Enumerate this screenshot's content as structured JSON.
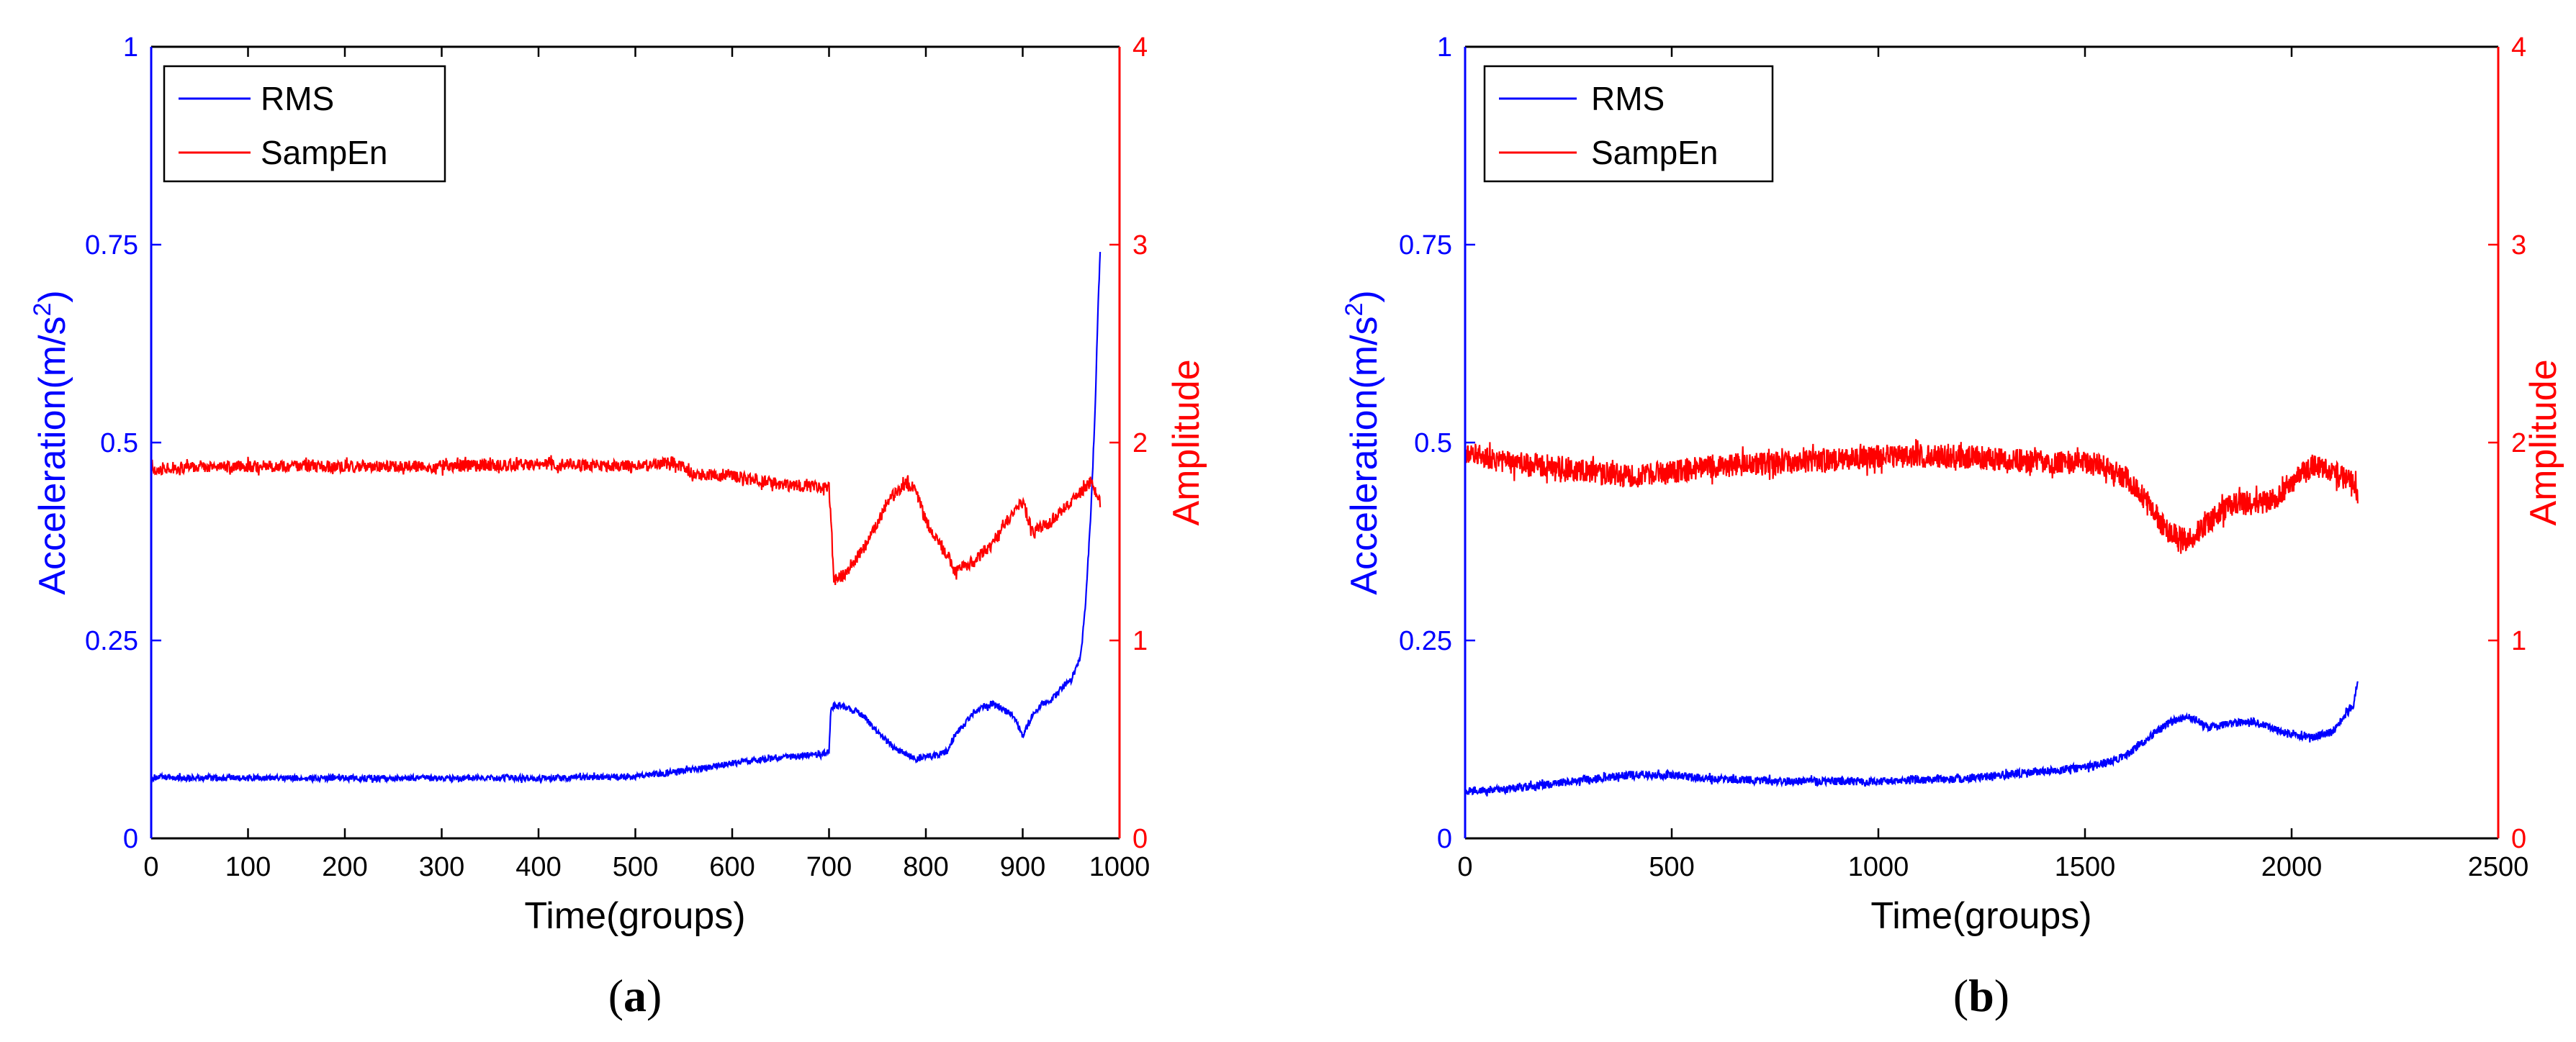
{
  "colors": {
    "left_axis": "#0000ff",
    "right_axis": "#ff0000",
    "frame": "#000000"
  },
  "chart_data": [
    {
      "panel_id": "a",
      "caption": {
        "open": "(",
        "letter": "a",
        "close": ")"
      },
      "type": "line",
      "title": "",
      "xlabel": "Time(groups)",
      "ylabel_left": "Acceleration(m/s",
      "ylabel_left_sup": "2",
      "ylabel_left_close": ")",
      "ylabel_right": "Amplitude",
      "xlim": [
        0,
        1000
      ],
      "ylim_left": [
        0,
        1
      ],
      "ylim_right": [
        0,
        4
      ],
      "xticks": [
        "0",
        "100",
        "200",
        "300",
        "400",
        "500",
        "600",
        "700",
        "800",
        "900",
        "1000"
      ],
      "xtick_values": [
        0,
        100,
        200,
        300,
        400,
        500,
        600,
        700,
        800,
        900,
        1000
      ],
      "yticks_left": [
        "0",
        "0.25",
        "0.5",
        "0.75",
        "1"
      ],
      "ytick_left_values": [
        0,
        0.25,
        0.5,
        0.75,
        1
      ],
      "yticks_right": [
        "0",
        "1",
        "2",
        "3",
        "4"
      ],
      "ytick_right_values": [
        0,
        1,
        2,
        3,
        4
      ],
      "legend": [
        "RMS",
        "SampEn"
      ],
      "legend_position": "top-left",
      "series": [
        {
          "name": "RMS",
          "axis": "left",
          "color": "#0000ff",
          "noise": 0.004,
          "x": [
            0,
            100,
            200,
            300,
            400,
            500,
            550,
            600,
            650,
            700,
            702,
            710,
            730,
            750,
            770,
            790,
            810,
            822,
            830,
            850,
            870,
            890,
            900,
            910,
            920,
            930,
            940,
            950,
            960,
            965,
            970,
            975,
            978,
            980
          ],
          "values": [
            0.077,
            0.076,
            0.076,
            0.076,
            0.076,
            0.078,
            0.085,
            0.095,
            0.102,
            0.108,
            0.165,
            0.168,
            0.16,
            0.135,
            0.112,
            0.1,
            0.105,
            0.11,
            0.13,
            0.16,
            0.17,
            0.155,
            0.13,
            0.155,
            0.17,
            0.175,
            0.19,
            0.2,
            0.23,
            0.3,
            0.4,
            0.55,
            0.68,
            0.74
          ]
        },
        {
          "name": "SampEn",
          "axis": "right",
          "color": "#ff0000",
          "noise": 0.03,
          "x": [
            0,
            100,
            200,
            300,
            400,
            500,
            540,
            560,
            600,
            650,
            700,
            702,
            705,
            720,
            740,
            760,
            780,
            790,
            800,
            820,
            830,
            850,
            870,
            890,
            900,
            910,
            930,
            950,
            960,
            970,
            980
          ],
          "values": [
            1.87,
            1.88,
            1.88,
            1.88,
            1.89,
            1.88,
            1.9,
            1.84,
            1.83,
            1.79,
            1.77,
            1.6,
            1.3,
            1.35,
            1.5,
            1.7,
            1.8,
            1.75,
            1.6,
            1.45,
            1.35,
            1.4,
            1.5,
            1.65,
            1.7,
            1.55,
            1.6,
            1.7,
            1.75,
            1.8,
            1.7
          ]
        }
      ]
    },
    {
      "panel_id": "b",
      "caption": {
        "open": "(",
        "letter": "b",
        "close": ")"
      },
      "type": "line",
      "title": "",
      "xlabel": "Time(groups)",
      "ylabel_left": "Acceleration(m/s",
      "ylabel_left_sup": "2",
      "ylabel_left_close": ")",
      "ylabel_right": "Amplitude",
      "xlim": [
        0,
        2500
      ],
      "ylim_left": [
        0,
        1
      ],
      "ylim_right": [
        0,
        4
      ],
      "xticks": [
        "0",
        "500",
        "1000",
        "1500",
        "2000",
        "2500"
      ],
      "xtick_values": [
        0,
        500,
        1000,
        1500,
        2000,
        2500
      ],
      "yticks_left": [
        "0",
        "0.25",
        "0.5",
        "0.75",
        "1"
      ],
      "ytick_left_values": [
        0,
        0.25,
        0.5,
        0.75,
        1
      ],
      "yticks_right": [
        "0",
        "1",
        "2",
        "3",
        "4"
      ],
      "ytick_right_values": [
        0,
        1,
        2,
        3,
        4
      ],
      "legend": [
        "RMS",
        "SampEn"
      ],
      "legend_position": "top-left",
      "series": [
        {
          "name": "RMS",
          "axis": "left",
          "color": "#0000ff",
          "noise": 0.005,
          "x": [
            0,
            100,
            200,
            300,
            400,
            500,
            600,
            800,
            1000,
            1200,
            1400,
            1500,
            1550,
            1600,
            1650,
            1700,
            1750,
            1800,
            1850,
            1900,
            1950,
            2000,
            2050,
            2100,
            2150,
            2160
          ],
          "values": [
            0.06,
            0.062,
            0.068,
            0.075,
            0.08,
            0.08,
            0.075,
            0.072,
            0.072,
            0.075,
            0.085,
            0.09,
            0.095,
            0.105,
            0.125,
            0.145,
            0.155,
            0.14,
            0.145,
            0.148,
            0.14,
            0.13,
            0.128,
            0.135,
            0.17,
            0.2
          ]
        },
        {
          "name": "SampEn",
          "axis": "right",
          "color": "#ff0000",
          "noise": 0.06,
          "x": [
            0,
            100,
            200,
            300,
            400,
            500,
            600,
            800,
            1000,
            1200,
            1400,
            1500,
            1550,
            1600,
            1650,
            1700,
            1750,
            1800,
            1850,
            1900,
            1950,
            2000,
            2050,
            2100,
            2150,
            2160
          ],
          "values": [
            1.95,
            1.9,
            1.88,
            1.85,
            1.83,
            1.85,
            1.88,
            1.9,
            1.93,
            1.93,
            1.9,
            1.9,
            1.88,
            1.82,
            1.7,
            1.55,
            1.5,
            1.6,
            1.68,
            1.7,
            1.7,
            1.8,
            1.88,
            1.85,
            1.8,
            1.75
          ]
        }
      ]
    }
  ]
}
